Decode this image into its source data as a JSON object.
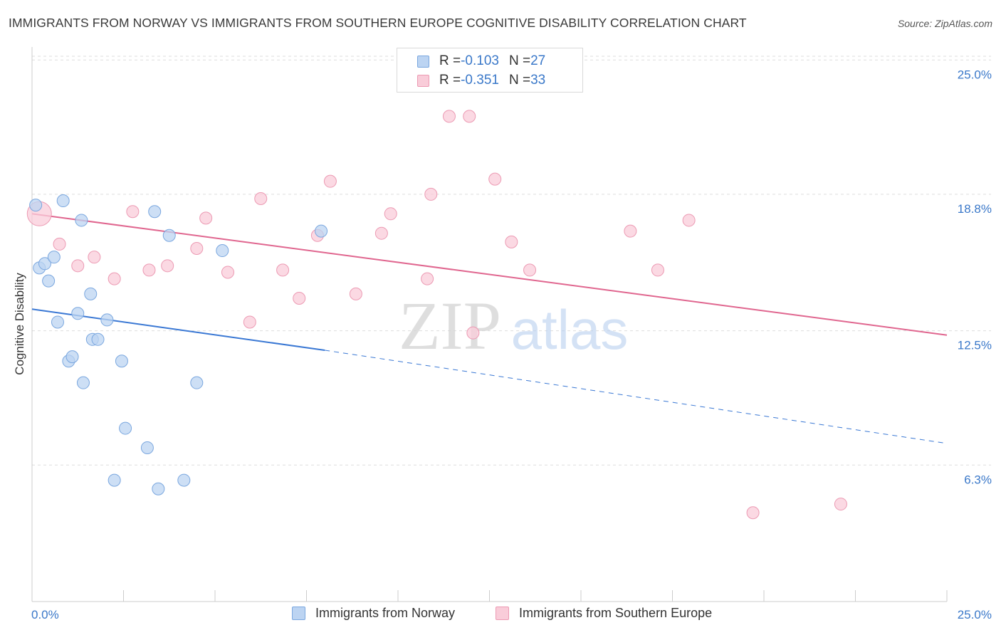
{
  "title": "IMMIGRANTS FROM NORWAY VS IMMIGRANTS FROM SOUTHERN EUROPE COGNITIVE DISABILITY CORRELATION CHART",
  "source": "Source: ZipAtlas.com",
  "watermark": {
    "zip": "ZIP",
    "atlas": "atlas"
  },
  "legend": {
    "norway": {
      "r_label": "R = ",
      "r_value": "-0.103",
      "n_label": "N = ",
      "n_value": "27"
    },
    "southern": {
      "r_label": "R = ",
      "r_value": "-0.351",
      "n_label": "N = ",
      "n_value": "33"
    }
  },
  "colors": {
    "norway_fill": "#bcd4f2",
    "norway_stroke": "#7aa7df",
    "norway_line": "#3a78d4",
    "southern_fill": "#f9ccd9",
    "southern_stroke": "#ec9ab3",
    "southern_line": "#e0668f",
    "axis_label": "#3a78c9",
    "grid": "#dddddd"
  },
  "chart_data": {
    "type": "scatter",
    "xlabel": "",
    "ylabel": "Cognitive Disability",
    "xlim": [
      0,
      25
    ],
    "ylim": [
      0,
      25.6
    ],
    "x_tick_labels": [
      "0.0%",
      "25.0%"
    ],
    "y_ticks": [
      6.3,
      12.5,
      18.8,
      25.0
    ],
    "y_tick_labels": [
      "6.3%",
      "12.5%",
      "18.8%",
      "25.0%"
    ],
    "grid": true,
    "series": [
      {
        "name": "Immigrants from Norway",
        "points": [
          [
            0.1,
            18.3
          ],
          [
            0.85,
            18.5
          ],
          [
            1.35,
            17.6
          ],
          [
            3.35,
            18.0
          ],
          [
            3.75,
            16.9
          ],
          [
            5.2,
            16.2
          ],
          [
            7.9,
            17.1
          ],
          [
            0.2,
            15.4
          ],
          [
            0.35,
            15.6
          ],
          [
            0.6,
            15.9
          ],
          [
            0.45,
            14.8
          ],
          [
            1.6,
            14.2
          ],
          [
            1.25,
            13.3
          ],
          [
            0.7,
            12.9
          ],
          [
            2.05,
            13.0
          ],
          [
            1.65,
            12.1
          ],
          [
            1.8,
            12.1
          ],
          [
            1.0,
            11.1
          ],
          [
            1.1,
            11.3
          ],
          [
            2.45,
            11.1
          ],
          [
            1.4,
            10.1
          ],
          [
            4.5,
            10.1
          ],
          [
            2.55,
            8.0
          ],
          [
            3.15,
            7.1
          ],
          [
            2.25,
            5.6
          ],
          [
            3.45,
            5.2
          ],
          [
            4.15,
            5.6
          ]
        ],
        "trend": {
          "x0": 0,
          "y0": 13.5,
          "x1": 8.0,
          "y1": 11.6,
          "x_dash_end": 25.0,
          "y_dash_end": 7.3
        }
      },
      {
        "name": "Immigrants from Southern Europe",
        "points": [
          [
            0.2,
            17.9
          ],
          [
            0.75,
            16.5
          ],
          [
            1.25,
            15.5
          ],
          [
            1.7,
            15.9
          ],
          [
            2.25,
            14.9
          ],
          [
            2.75,
            18.0
          ],
          [
            3.2,
            15.3
          ],
          [
            3.7,
            15.5
          ],
          [
            4.5,
            16.3
          ],
          [
            4.75,
            17.7
          ],
          [
            5.35,
            15.2
          ],
          [
            5.95,
            12.9
          ],
          [
            6.25,
            18.6
          ],
          [
            6.85,
            15.3
          ],
          [
            7.3,
            14.0
          ],
          [
            7.8,
            16.9
          ],
          [
            8.15,
            19.4
          ],
          [
            8.85,
            14.2
          ],
          [
            9.55,
            17.0
          ],
          [
            9.8,
            17.9
          ],
          [
            10.8,
            14.9
          ],
          [
            10.9,
            18.8
          ],
          [
            11.4,
            22.4
          ],
          [
            11.95,
            22.4
          ],
          [
            12.05,
            12.4
          ],
          [
            12.65,
            19.5
          ],
          [
            13.1,
            16.6
          ],
          [
            13.6,
            15.3
          ],
          [
            16.35,
            17.1
          ],
          [
            17.1,
            15.3
          ],
          [
            17.95,
            17.6
          ],
          [
            19.7,
            4.1
          ],
          [
            22.1,
            4.5
          ]
        ],
        "trend": {
          "x0": 0,
          "y0": 17.9,
          "x1": 25.0,
          "y1": 12.3
        }
      }
    ]
  },
  "bottom_legend": {
    "norway_label": "Immigrants from Norway",
    "southern_label": "Immigrants from Southern Europe"
  }
}
